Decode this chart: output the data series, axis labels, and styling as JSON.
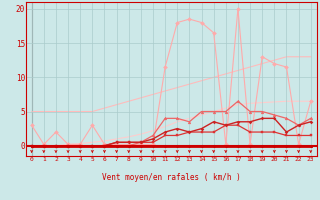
{
  "x": [
    0,
    1,
    2,
    3,
    4,
    5,
    6,
    7,
    8,
    9,
    10,
    11,
    12,
    13,
    14,
    15,
    16,
    17,
    18,
    19,
    20,
    21,
    22,
    23
  ],
  "background_color": "#cce8e8",
  "grid_color": "#aacccc",
  "xlabel": "Vent moyen/en rafales ( km/h )",
  "yticks": [
    0,
    5,
    10,
    15,
    20
  ],
  "ylim": [
    -1.5,
    21
  ],
  "xlim": [
    -0.5,
    23.5
  ],
  "series": [
    {
      "y": [
        5.0,
        5.0,
        5.0,
        5.0,
        5.0,
        5.0,
        5.5,
        6.0,
        6.5,
        7.0,
        7.5,
        8.0,
        8.5,
        9.0,
        9.5,
        10.0,
        10.5,
        11.0,
        11.5,
        12.0,
        12.5,
        13.0,
        13.0,
        13.0
      ],
      "color": "#ffbbbb",
      "lw": 0.8,
      "marker": null,
      "zorder": 1
    },
    {
      "y": [
        3.0,
        0.2,
        2.0,
        0.2,
        0.2,
        3.0,
        0.2,
        0.2,
        0.2,
        0.2,
        0.2,
        11.5,
        18.0,
        18.5,
        18.0,
        16.5,
        0.2,
        20.0,
        0.2,
        13.0,
        12.0,
        11.5,
        0.2,
        6.5
      ],
      "color": "#ffaaaa",
      "lw": 0.8,
      "marker": "D",
      "markersize": 2.0,
      "zorder": 2
    },
    {
      "y": [
        0.0,
        0.0,
        0.0,
        0.2,
        0.3,
        0.5,
        0.7,
        1.0,
        1.3,
        1.7,
        2.2,
        2.8,
        3.5,
        4.0,
        4.5,
        5.0,
        5.5,
        6.0,
        6.2,
        6.3,
        6.4,
        6.5,
        6.5,
        6.5
      ],
      "color": "#ffcccc",
      "lw": 0.8,
      "marker": null,
      "zorder": 1
    },
    {
      "y": [
        0.0,
        0.0,
        0.0,
        0.0,
        0.0,
        0.0,
        0.0,
        0.0,
        0.0,
        0.5,
        1.5,
        4.0,
        4.0,
        3.5,
        5.0,
        5.0,
        5.0,
        6.5,
        5.0,
        5.0,
        4.5,
        4.0,
        3.0,
        4.0
      ],
      "color": "#ee6666",
      "lw": 0.9,
      "marker": "^",
      "markersize": 2.0,
      "zorder": 3
    },
    {
      "y": [
        0.0,
        0.0,
        0.0,
        0.0,
        0.0,
        0.0,
        0.0,
        0.5,
        0.5,
        0.5,
        1.0,
        2.0,
        2.5,
        2.0,
        2.5,
        3.5,
        3.0,
        3.5,
        3.5,
        4.0,
        4.0,
        2.0,
        3.0,
        3.5
      ],
      "color": "#cc2222",
      "lw": 1.0,
      "marker": "P",
      "markersize": 2.0,
      "zorder": 4
    },
    {
      "y": [
        0.0,
        0.0,
        0.0,
        0.0,
        0.0,
        0.0,
        0.0,
        0.0,
        0.0,
        0.0,
        0.0,
        0.0,
        0.0,
        0.0,
        0.0,
        0.0,
        0.0,
        0.0,
        0.0,
        0.0,
        0.0,
        0.0,
        0.0,
        0.0
      ],
      "color": "#cc0000",
      "lw": 2.0,
      "marker": "D",
      "markersize": 1.5,
      "zorder": 5
    },
    {
      "y": [
        0.0,
        0.0,
        0.0,
        0.0,
        0.0,
        0.0,
        0.0,
        0.5,
        0.5,
        0.5,
        0.5,
        1.5,
        1.5,
        2.0,
        2.0,
        2.0,
        3.0,
        3.0,
        2.0,
        2.0,
        2.0,
        1.5,
        1.5,
        1.5
      ],
      "color": "#dd3333",
      "lw": 0.9,
      "marker": "s",
      "markersize": 1.8,
      "zorder": 3
    }
  ]
}
